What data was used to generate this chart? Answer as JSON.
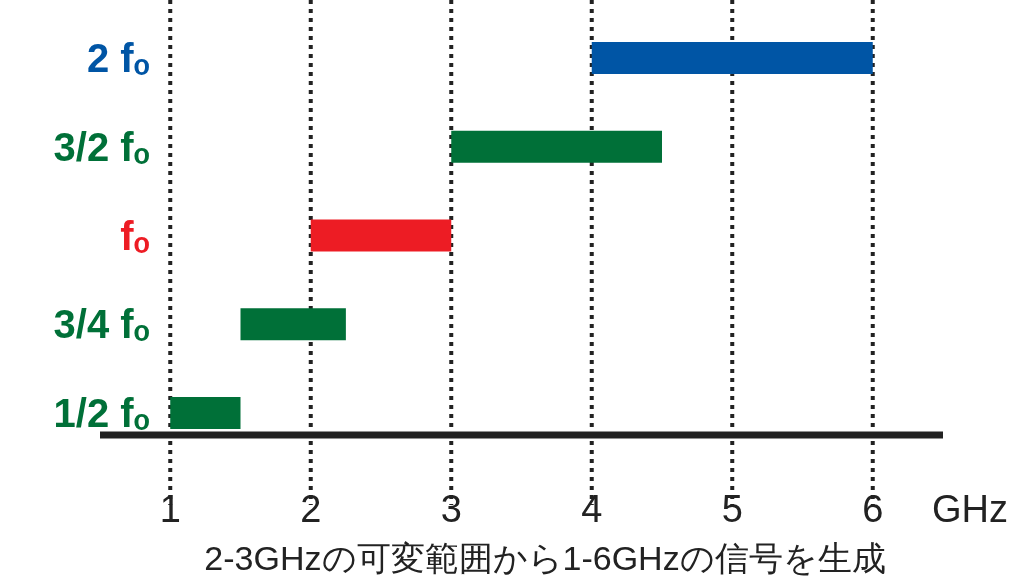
{
  "chart_data": {
    "type": "bar",
    "orientation": "horizontal",
    "categories": [
      "2 fₒ",
      "3/2 fₒ",
      "fₒ",
      "3/4 fₒ",
      "1/2 fₒ"
    ],
    "values": [
      2,
      1.5,
      1,
      0.75,
      0.5
    ],
    "base": [
      4,
      3,
      2,
      1.5,
      1
    ],
    "colors": [
      "#0055a5",
      "#007038",
      "#ed1c24",
      "#007038",
      "#007038"
    ],
    "xlim": [
      0.5,
      6.5
    ],
    "xticks": [
      1,
      2,
      3,
      4,
      5,
      6
    ],
    "xlabel": "GHz",
    "grid": "x",
    "annotations": [
      "2-3GHzの可変範囲から1-6GHzの信号を生成"
    ]
  }
}
